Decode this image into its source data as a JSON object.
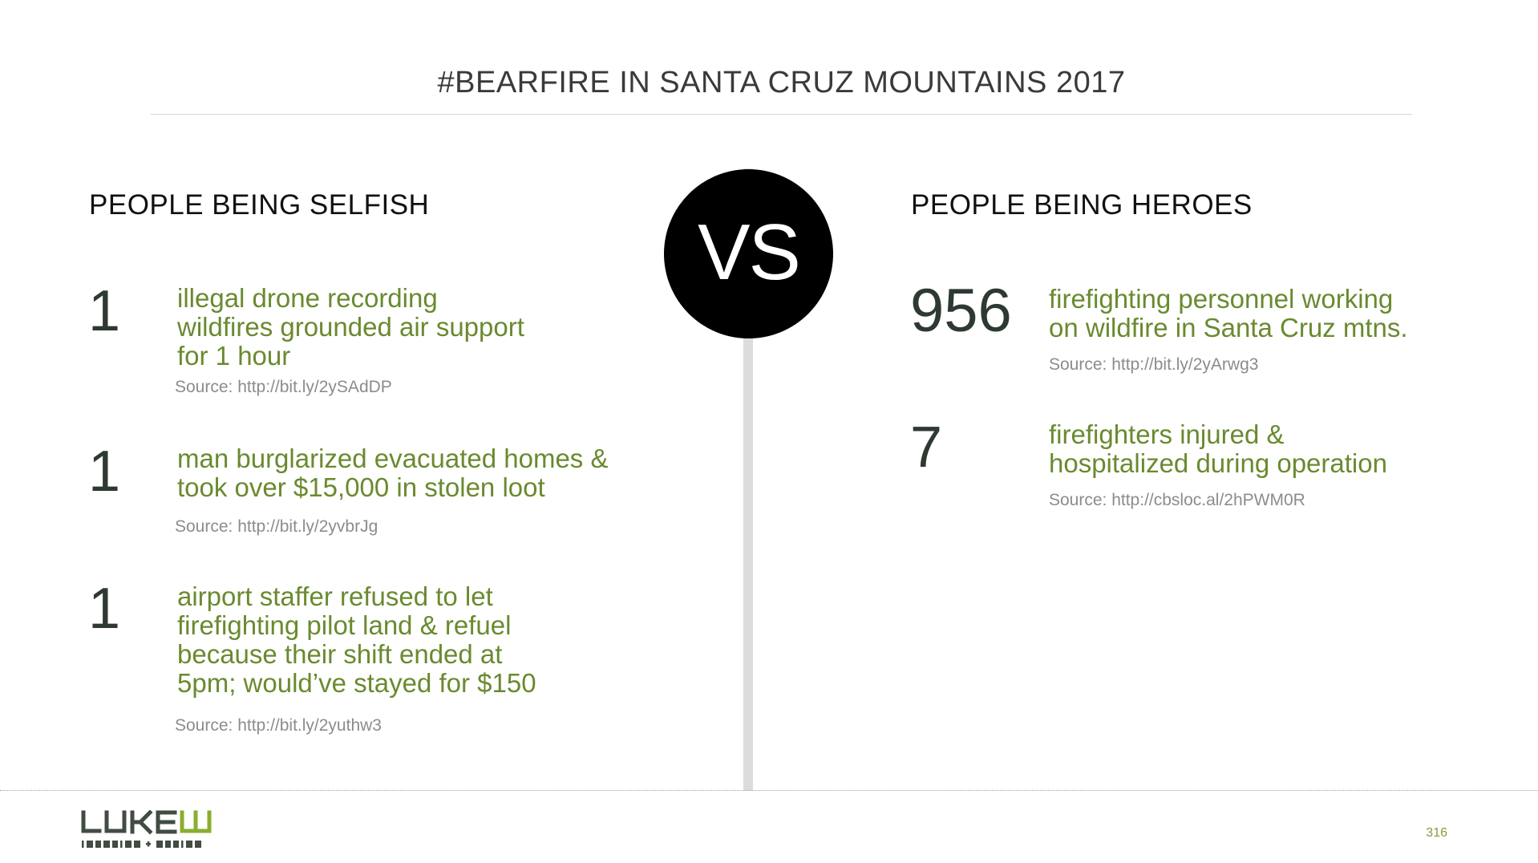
{
  "slide": {
    "title": "#BEARFIRE IN SANTA CRUZ MOUNTAINS 2017",
    "vs_label": "VS",
    "page_number": "316"
  },
  "left": {
    "heading": "PEOPLE BEING SELFISH",
    "items": [
      {
        "number": "1",
        "lines": [
          "illegal drone recording",
          "wildfires grounded air support",
          "for 1 hour"
        ],
        "source": "Source: http://bit.ly/2ySAdDP"
      },
      {
        "number": "1",
        "lines": [
          "man burglarized evacuated homes &",
          "took over $15,000 in stolen loot"
        ],
        "source": "Source: http://bit.ly/2yvbrJg"
      },
      {
        "number": "1",
        "lines": [
          "airport staffer refused to let",
          "firefighting pilot land & refuel",
          "because their shift ended at",
          "5pm; would’ve stayed for $150"
        ],
        "source": "Source: http://bit.ly/2yuthw3"
      }
    ]
  },
  "right": {
    "heading": "PEOPLE BEING HEROES",
    "items": [
      {
        "number": "956",
        "lines": [
          "firefighting personnel working",
          "on wildfire in Santa Cruz mtns."
        ],
        "source": "Source: http://bit.ly/2yArwg3"
      },
      {
        "number": "7",
        "lines": [
          "firefighters injured &",
          "hospitalized during operation"
        ],
        "source": "Source: http://cbsloc.al/2hPWM0R"
      }
    ]
  },
  "logo": {
    "wordmark_dark": "LUKE",
    "wordmark_accent": "W",
    "tagline": "IDEATION + DESIGN"
  },
  "colors": {
    "accent_green": "#6a8a2f",
    "number_dark": "#2e3a31",
    "source_gray": "#8c8c8c",
    "divider_gray": "#dcdcdc",
    "vs_circle": "#000000"
  }
}
